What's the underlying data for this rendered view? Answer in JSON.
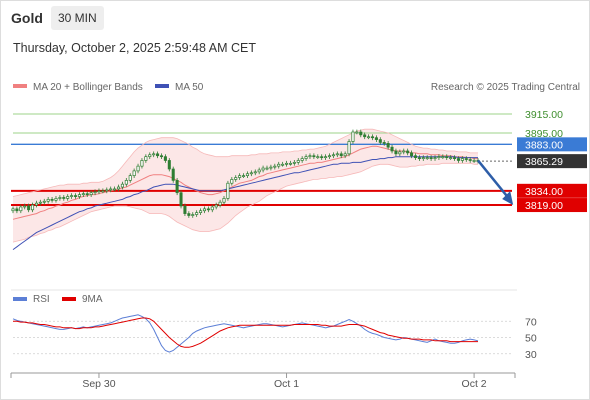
{
  "header": {
    "symbol": "Gold",
    "timeframe": "30 MIN",
    "datetime": "Thursday, October 2, 2025 2:59:48 AM CET",
    "credit": "Research © 2025 Trading Central"
  },
  "colors": {
    "candle": "#2e7d32",
    "ma20": "#f08080",
    "ma50": "#3f51b5",
    "bands_fill": "#fbe3e3",
    "green_line": "#9cd38a",
    "blue_line": "#3a7bd5",
    "red_line": "#e00000",
    "arrow": "#2e5ea8",
    "rsi": "#5c7fd6",
    "rsi_ma": "#e00000"
  },
  "chart_data": [
    {
      "type": "candlestick",
      "legend": [
        {
          "name": "MA 20 + Bollinger Bands",
          "color": "#f08080"
        },
        {
          "name": "MA 50",
          "color": "#3f51b5"
        }
      ],
      "x_ticks": [
        {
          "label": "Sep 30",
          "index": 22
        },
        {
          "label": "Oct 1",
          "index": 70
        },
        {
          "label": "Oct 2",
          "index": 118
        }
      ],
      "ylim": [
        3740,
        3935
      ],
      "levels": [
        {
          "value": 3915.0,
          "label": "3915.00",
          "color": "#9cd38a",
          "kind": "line"
        },
        {
          "value": 3895.0,
          "label": "3895.00",
          "color": "#9cd38a",
          "kind": "line"
        },
        {
          "value": 3883.0,
          "label": "3883.00",
          "color": "#3a7bd5",
          "kind": "box"
        },
        {
          "value": 3865.29,
          "label": "3865.29",
          "color": "#333333",
          "kind": "box"
        },
        {
          "value": 3834.0,
          "label": "3834.00",
          "color": "#e00000",
          "kind": "box"
        },
        {
          "value": 3819.0,
          "label": "3819.00",
          "color": "#e00000",
          "kind": "box"
        }
      ],
      "close": [
        3815,
        3813,
        3817,
        3818,
        3814,
        3819,
        3821,
        3822,
        3823,
        3825,
        3824,
        3826,
        3827,
        3826,
        3828,
        3829,
        3828,
        3830,
        3831,
        3830,
        3832,
        3833,
        3834,
        3834,
        3835,
        3836,
        3836,
        3838,
        3841,
        3845,
        3850,
        3855,
        3860,
        3866,
        3870,
        3872,
        3873,
        3871,
        3870,
        3866,
        3857,
        3845,
        3832,
        3818,
        3810,
        3808,
        3809,
        3811,
        3813,
        3815,
        3814,
        3817,
        3819,
        3822,
        3826,
        3842,
        3846,
        3848,
        3850,
        3850,
        3852,
        3853,
        3854,
        3856,
        3858,
        3858,
        3859,
        3860,
        3862,
        3862,
        3863,
        3863,
        3864,
        3866,
        3868,
        3870,
        3871,
        3870,
        3870,
        3869,
        3870,
        3871,
        3872,
        3873,
        3871,
        3873,
        3886,
        3896,
        3896,
        3893,
        3891,
        3891,
        3890,
        3888,
        3885,
        3884,
        3880,
        3876,
        3873,
        3875,
        3876,
        3874,
        3871,
        3869,
        3868,
        3869,
        3869,
        3868,
        3869,
        3870,
        3870,
        3869,
        3869,
        3868,
        3866,
        3868,
        3867,
        3866,
        3866,
        3865.29
      ],
      "ma20": [
        3804,
        3805,
        3806,
        3807,
        3808,
        3809,
        3810,
        3812,
        3813,
        3815,
        3816,
        3818,
        3819,
        3821,
        3822,
        3824,
        3825,
        3827,
        3828,
        3829,
        3830,
        3830,
        3831,
        3832,
        3833,
        3834,
        3835,
        3836,
        3837,
        3838,
        3840,
        3842,
        3844,
        3846,
        3848,
        3850,
        3851,
        3851,
        3851,
        3850,
        3849,
        3847,
        3845,
        3843,
        3840,
        3838,
        3836,
        3834,
        3832,
        3831,
        3830,
        3830,
        3831,
        3832,
        3834,
        3836,
        3838,
        3840,
        3842,
        3843,
        3844,
        3845,
        3847,
        3849,
        3850,
        3852,
        3853,
        3854,
        3855,
        3856,
        3857,
        3858,
        3859,
        3860,
        3861,
        3862,
        3863,
        3863,
        3864,
        3864,
        3865,
        3866,
        3867,
        3868,
        3869,
        3870,
        3872,
        3874,
        3876,
        3878,
        3879,
        3880,
        3881,
        3881,
        3880,
        3879,
        3878,
        3877,
        3876,
        3876,
        3876,
        3875,
        3874,
        3874,
        3873,
        3873,
        3873,
        3872,
        3872,
        3872,
        3871,
        3871,
        3871,
        3870,
        3870,
        3870,
        3869,
        3869,
        3868,
        3868
      ],
      "bb_upper": [
        3828,
        3829,
        3830,
        3831,
        3832,
        3833,
        3834,
        3835,
        3836,
        3837,
        3838,
        3839,
        3840,
        3840,
        3841,
        3841,
        3841,
        3841,
        3842,
        3842,
        3843,
        3843,
        3843,
        3844,
        3846,
        3848,
        3851,
        3855,
        3860,
        3865,
        3870,
        3875,
        3879,
        3882,
        3885,
        3887,
        3888,
        3889,
        3890,
        3890,
        3890,
        3890,
        3889,
        3887,
        3885,
        3883,
        3880,
        3878,
        3875,
        3873,
        3872,
        3871,
        3870,
        3870,
        3870,
        3870,
        3871,
        3871,
        3871,
        3871,
        3871,
        3872,
        3872,
        3873,
        3873,
        3873,
        3874,
        3874,
        3874,
        3875,
        3875,
        3875,
        3876,
        3876,
        3877,
        3877,
        3878,
        3878,
        3879,
        3880,
        3881,
        3883,
        3885,
        3887,
        3889,
        3891,
        3893,
        3895,
        3897,
        3898,
        3899,
        3899,
        3899,
        3898,
        3897,
        3896,
        3895,
        3893,
        3891,
        3889,
        3887,
        3885,
        3883,
        3881,
        3880,
        3879,
        3879,
        3878,
        3878,
        3877,
        3877,
        3876,
        3876,
        3876,
        3875,
        3875,
        3875,
        3874,
        3874,
        3874
      ],
      "bb_lower": [
        3780,
        3781,
        3782,
        3783,
        3785,
        3786,
        3787,
        3789,
        3790,
        3792,
        3793,
        3795,
        3796,
        3798,
        3800,
        3802,
        3804,
        3806,
        3808,
        3810,
        3812,
        3813,
        3814,
        3815,
        3816,
        3817,
        3818,
        3818,
        3818,
        3818,
        3817,
        3816,
        3815,
        3814,
        3812,
        3810,
        3810,
        3810,
        3810,
        3809,
        3807,
        3804,
        3801,
        3799,
        3797,
        3795,
        3793,
        3792,
        3791,
        3791,
        3791,
        3792,
        3793,
        3794,
        3797,
        3800,
        3804,
        3808,
        3811,
        3814,
        3817,
        3819,
        3821,
        3823,
        3826,
        3829,
        3831,
        3833,
        3835,
        3837,
        3839,
        3840,
        3841,
        3842,
        3843,
        3844,
        3845,
        3846,
        3846,
        3847,
        3847,
        3848,
        3848,
        3849,
        3849,
        3850,
        3851,
        3852,
        3853,
        3854,
        3856,
        3858,
        3860,
        3861,
        3862,
        3862,
        3862,
        3861,
        3860,
        3859,
        3859,
        3859,
        3860,
        3860,
        3861,
        3861,
        3862,
        3862,
        3862,
        3862,
        3863,
        3863,
        3863,
        3863,
        3863,
        3863,
        3863,
        3863,
        3862,
        3862
      ],
      "ma50": [
        3772,
        3775,
        3778,
        3781,
        3784,
        3787,
        3790,
        3792,
        3794,
        3796,
        3798,
        3800,
        3802,
        3804,
        3806,
        3808,
        3810,
        3812,
        3813,
        3815,
        3816,
        3818,
        3819,
        3820,
        3821,
        3822,
        3823,
        3824,
        3825,
        3827,
        3828,
        3830,
        3831,
        3833,
        3834,
        3836,
        3838,
        3839,
        3840,
        3841,
        3841,
        3841,
        3840,
        3839,
        3838,
        3837,
        3836,
        3835,
        3834,
        3834,
        3834,
        3834,
        3834,
        3834,
        3835,
        3836,
        3837,
        3838,
        3839,
        3840,
        3841,
        3842,
        3843,
        3844,
        3845,
        3846,
        3847,
        3848,
        3849,
        3850,
        3851,
        3852,
        3853,
        3853,
        3854,
        3855,
        3856,
        3857,
        3858,
        3859,
        3860,
        3861,
        3862,
        3862,
        3863,
        3863,
        3863,
        3864,
        3864,
        3864,
        3865,
        3866,
        3867,
        3867,
        3868,
        3868,
        3869,
        3869,
        3870,
        3870,
        3870,
        3870,
        3870,
        3870,
        3870,
        3870,
        3870,
        3870,
        3870,
        3870,
        3870,
        3870,
        3870,
        3870,
        3869,
        3869,
        3869,
        3869,
        3869,
        3869
      ],
      "projection": {
        "from_index": 119,
        "from_value": 3866,
        "to_index": 128,
        "to_value": 3819
      }
    },
    {
      "type": "line",
      "legend": [
        {
          "name": "RSI",
          "color": "#5c7fd6"
        },
        {
          "name": "9MA",
          "color": "#e00000"
        }
      ],
      "y_ticks": [
        70,
        50,
        30
      ],
      "ylim": [
        10,
        90
      ],
      "rsi": [
        73,
        71,
        70,
        69,
        68,
        67,
        66,
        65,
        64,
        63,
        62,
        61,
        60,
        60,
        61,
        62,
        61,
        62,
        63,
        62,
        63,
        64,
        65,
        66,
        67,
        68,
        70,
        72,
        74,
        75,
        76,
        77,
        78,
        76,
        73,
        68,
        60,
        50,
        40,
        34,
        32,
        34,
        38,
        42,
        46,
        50,
        55,
        58,
        60,
        62,
        63,
        64,
        65,
        66,
        67,
        66,
        65,
        64,
        63,
        62,
        63,
        64,
        65,
        66,
        67,
        67,
        66,
        65,
        64,
        63,
        64,
        65,
        66,
        67,
        68,
        67,
        66,
        65,
        64,
        63,
        62,
        63,
        64,
        66,
        68,
        70,
        72,
        70,
        67,
        64,
        60,
        57,
        55,
        54,
        52,
        50,
        49,
        48,
        47,
        48,
        50,
        49,
        48,
        47,
        46,
        45,
        44,
        46,
        48,
        46,
        45,
        44,
        43,
        43,
        44,
        46,
        47,
        48,
        47,
        46
      ],
      "rsi_ma": [
        70,
        70,
        69,
        69,
        68,
        68,
        67,
        66,
        66,
        65,
        64,
        63,
        63,
        62,
        62,
        62,
        61,
        61,
        62,
        62,
        62,
        63,
        63,
        64,
        65,
        66,
        67,
        68,
        69,
        70,
        71,
        72,
        73,
        74,
        74,
        73,
        70,
        65,
        60,
        55,
        50,
        46,
        42,
        39,
        38,
        38,
        39,
        41,
        43,
        46,
        49,
        52,
        55,
        58,
        60,
        62,
        63,
        64,
        65,
        65,
        65,
        65,
        65,
        65,
        65,
        65,
        65,
        65,
        65,
        65,
        65,
        65,
        66,
        66,
        66,
        66,
        66,
        66,
        66,
        65,
        65,
        64,
        64,
        64,
        64,
        65,
        66,
        66,
        66,
        65,
        64,
        62,
        60,
        58,
        56,
        55,
        53,
        52,
        51,
        50,
        49,
        49,
        48,
        48,
        48,
        47,
        47,
        47,
        46,
        46,
        46,
        46,
        45,
        45,
        45,
        45,
        45,
        45,
        45,
        45
      ]
    }
  ]
}
